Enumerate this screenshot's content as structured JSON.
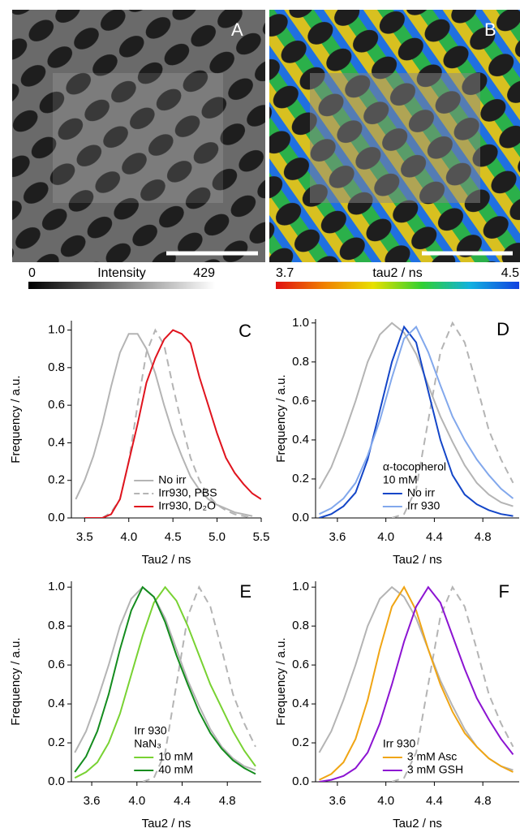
{
  "panels": [
    {
      "label": "A",
      "colorbar": {
        "min": 0,
        "title": "Intensity",
        "max": 429
      }
    },
    {
      "label": "B",
      "colorbar": {
        "min": 3.7,
        "title": "tau2 / ns",
        "max": 4.5
      }
    }
  ],
  "chart_data": [
    {
      "type": "line",
      "title": "C",
      "x_label": "Tau2 / ns",
      "y_label": "Frequency / a.u.",
      "x": [
        3.4,
        3.5,
        3.6,
        3.7,
        3.8,
        3.9,
        4.0,
        4.1,
        4.2,
        4.3,
        4.4,
        4.5,
        4.6,
        4.7,
        4.8,
        4.9,
        5.0,
        5.1,
        5.2,
        5.3,
        5.4,
        5.5
      ],
      "xlim": [
        3.35,
        5.5
      ],
      "xticks": [
        3.5,
        {
          "value": 4,
          "label": "4.0"
        },
        4.5,
        {
          "value": 5,
          "label": "5.0"
        },
        5.5
      ],
      "ylim": [
        0,
        1.05
      ],
      "yticks": [
        {
          "value": 0,
          "label": "0.0"
        },
        0.2,
        0.4,
        0.6,
        0.8,
        {
          "value": 1,
          "label": "1.0"
        }
      ],
      "legend": "lower center",
      "series": [
        {
          "name": "No irr",
          "color": "#b4b4b4",
          "values": [
            0.1,
            0.2,
            0.33,
            0.5,
            0.7,
            0.88,
            0.98,
            0.98,
            0.9,
            0.77,
            0.6,
            0.45,
            0.33,
            0.22,
            0.15,
            0.1,
            0.07,
            0.05,
            0.03,
            0.02,
            0.01,
            null
          ]
        },
        {
          "name": "Irr930, PBS",
          "color": "#b4b4b4",
          "dash": true,
          "values": [
            null,
            null,
            null,
            0,
            0.03,
            0.1,
            0.3,
            0.6,
            0.88,
            1.0,
            0.92,
            0.7,
            0.5,
            0.32,
            0.2,
            0.12,
            0.07,
            0.04,
            0.02,
            0.01,
            0,
            null
          ]
        },
        {
          "name": "Irr930, D₂O",
          "color": "#e0141e",
          "values": [
            null,
            0,
            0,
            0,
            0.02,
            0.1,
            0.3,
            0.5,
            0.72,
            0.85,
            0.95,
            1.0,
            0.98,
            0.93,
            0.75,
            0.6,
            0.45,
            0.32,
            0.24,
            0.18,
            0.13,
            0.1
          ]
        }
      ]
    },
    {
      "type": "line",
      "title": "D",
      "x_label": "Tau2 / ns",
      "y_label": "Frequency / a.u.",
      "x": [
        3.45,
        3.55,
        3.65,
        3.75,
        3.85,
        3.95,
        4.05,
        4.15,
        4.25,
        4.35,
        4.45,
        4.55,
        4.65,
        4.75,
        4.85,
        4.95,
        5.05
      ],
      "xlim": [
        3.42,
        5.1
      ],
      "xticks": [
        3.6,
        {
          "value": 4,
          "label": "4.0"
        },
        4.4,
        4.8
      ],
      "ylim": [
        0,
        1.02
      ],
      "yticks": [
        {
          "value": 0,
          "label": "0.0"
        },
        0.2,
        0.4,
        0.6,
        0.8,
        {
          "value": 1,
          "label": "1.0"
        }
      ],
      "legend": "lower center",
      "legend_title": [
        "α-tocopherol",
        "10 mM"
      ],
      "series": [
        {
          "color": "#b4b4b4",
          "values": [
            0.15,
            0.26,
            0.42,
            0.6,
            0.8,
            0.94,
            1.0,
            0.95,
            0.84,
            0.68,
            0.52,
            0.39,
            0.27,
            0.18,
            0.12,
            0.08,
            0.06
          ]
        },
        {
          "color": "#b4b4b4",
          "dash": true,
          "values": [
            null,
            null,
            null,
            null,
            null,
            null,
            0,
            0.02,
            0.15,
            0.5,
            0.85,
            1.0,
            0.9,
            0.68,
            0.45,
            0.3,
            0.18
          ]
        },
        {
          "name": "No irr",
          "color": "#1446c8",
          "values": [
            0,
            0.02,
            0.06,
            0.13,
            0.3,
            0.55,
            0.8,
            0.98,
            0.9,
            0.65,
            0.4,
            0.22,
            0.12,
            0.07,
            0.04,
            0.02,
            0.01
          ]
        },
        {
          "name": "Irr 930",
          "color": "#82a8ec",
          "values": [
            0.02,
            0.05,
            0.1,
            0.18,
            0.32,
            0.5,
            0.72,
            0.92,
            0.98,
            0.85,
            0.68,
            0.52,
            0.4,
            0.3,
            0.22,
            0.15,
            0.1
          ]
        }
      ]
    },
    {
      "type": "line",
      "title": "E",
      "x_label": "Tau2 / ns",
      "y_label": "Frequency / a.u.",
      "x": [
        3.45,
        3.55,
        3.65,
        3.75,
        3.85,
        3.95,
        4.05,
        4.15,
        4.25,
        4.35,
        4.45,
        4.55,
        4.65,
        4.75,
        4.85,
        4.95,
        5.05
      ],
      "xlim": [
        3.42,
        5.1
      ],
      "xticks": [
        3.6,
        {
          "value": 4,
          "label": "4.0"
        },
        4.4,
        4.8
      ],
      "ylim": [
        0,
        1.03
      ],
      "yticks": [
        {
          "value": 0,
          "label": "0.0"
        },
        0.2,
        0.4,
        0.6,
        0.8,
        {
          "value": 1,
          "label": "1.0"
        }
      ],
      "legend": "lower center",
      "legend_title": [
        "Irr 930",
        "NaN₃"
      ],
      "series": [
        {
          "color": "#b4b4b4",
          "values": [
            0.15,
            0.26,
            0.42,
            0.6,
            0.8,
            0.94,
            1.0,
            0.95,
            0.84,
            0.68,
            0.52,
            0.39,
            0.27,
            0.18,
            0.12,
            0.08,
            0.06
          ]
        },
        {
          "color": "#b4b4b4",
          "dash": true,
          "values": [
            null,
            null,
            null,
            null,
            null,
            null,
            0,
            0.02,
            0.15,
            0.5,
            0.85,
            1.0,
            0.9,
            0.68,
            0.45,
            0.3,
            0.18
          ]
        },
        {
          "name": "10 mM",
          "color": "#78d232",
          "values": [
            0.02,
            0.05,
            0.1,
            0.2,
            0.35,
            0.55,
            0.75,
            0.92,
            1.0,
            0.93,
            0.8,
            0.65,
            0.5,
            0.38,
            0.26,
            0.16,
            0.08
          ]
        },
        {
          "name": "40 mM",
          "color": "#148c1e",
          "values": [
            0.05,
            0.13,
            0.26,
            0.45,
            0.68,
            0.88,
            1.0,
            0.95,
            0.82,
            0.65,
            0.5,
            0.36,
            0.25,
            0.17,
            0.11,
            0.07,
            0.04
          ]
        }
      ]
    },
    {
      "type": "line",
      "title": "F",
      "x_label": "Tau2 / ns",
      "y_label": "Frequency / a.u.",
      "x": [
        3.45,
        3.55,
        3.65,
        3.75,
        3.85,
        3.95,
        4.05,
        4.15,
        4.25,
        4.35,
        4.45,
        4.55,
        4.65,
        4.75,
        4.85,
        4.95,
        5.05
      ],
      "xlim": [
        3.42,
        5.1
      ],
      "xticks": [
        3.6,
        {
          "value": 4,
          "label": "4.0"
        },
        4.4,
        4.8
      ],
      "ylim": [
        0,
        1.03
      ],
      "yticks": [
        {
          "value": 0,
          "label": "0.0"
        },
        0.2,
        0.4,
        0.6,
        0.8,
        {
          "value": 1,
          "label": "1.0"
        }
      ],
      "legend": "lower center",
      "legend_title": [
        "Irr 930"
      ],
      "series": [
        {
          "color": "#b4b4b4",
          "values": [
            0.15,
            0.26,
            0.42,
            0.6,
            0.8,
            0.94,
            1.0,
            0.95,
            0.84,
            0.68,
            0.52,
            0.39,
            0.27,
            0.18,
            0.12,
            0.08,
            0.06
          ]
        },
        {
          "color": "#b4b4b4",
          "dash": true,
          "values": [
            null,
            null,
            null,
            null,
            null,
            null,
            0,
            0.02,
            0.15,
            0.5,
            0.85,
            1.0,
            0.9,
            0.68,
            0.45,
            0.3,
            0.18
          ]
        },
        {
          "name": "3 mM Asc",
          "color": "#f0a514",
          "values": [
            0.01,
            0.04,
            0.1,
            0.22,
            0.42,
            0.68,
            0.9,
            1.0,
            0.88,
            0.68,
            0.5,
            0.36,
            0.25,
            0.18,
            0.12,
            0.08,
            0.05
          ]
        },
        {
          "name": "3 mM GSH",
          "color": "#8c14d2",
          "values": [
            0,
            0.01,
            0.03,
            0.07,
            0.15,
            0.3,
            0.5,
            0.72,
            0.9,
            1.0,
            0.92,
            0.75,
            0.58,
            0.43,
            0.32,
            0.22,
            0.14
          ]
        }
      ]
    }
  ]
}
